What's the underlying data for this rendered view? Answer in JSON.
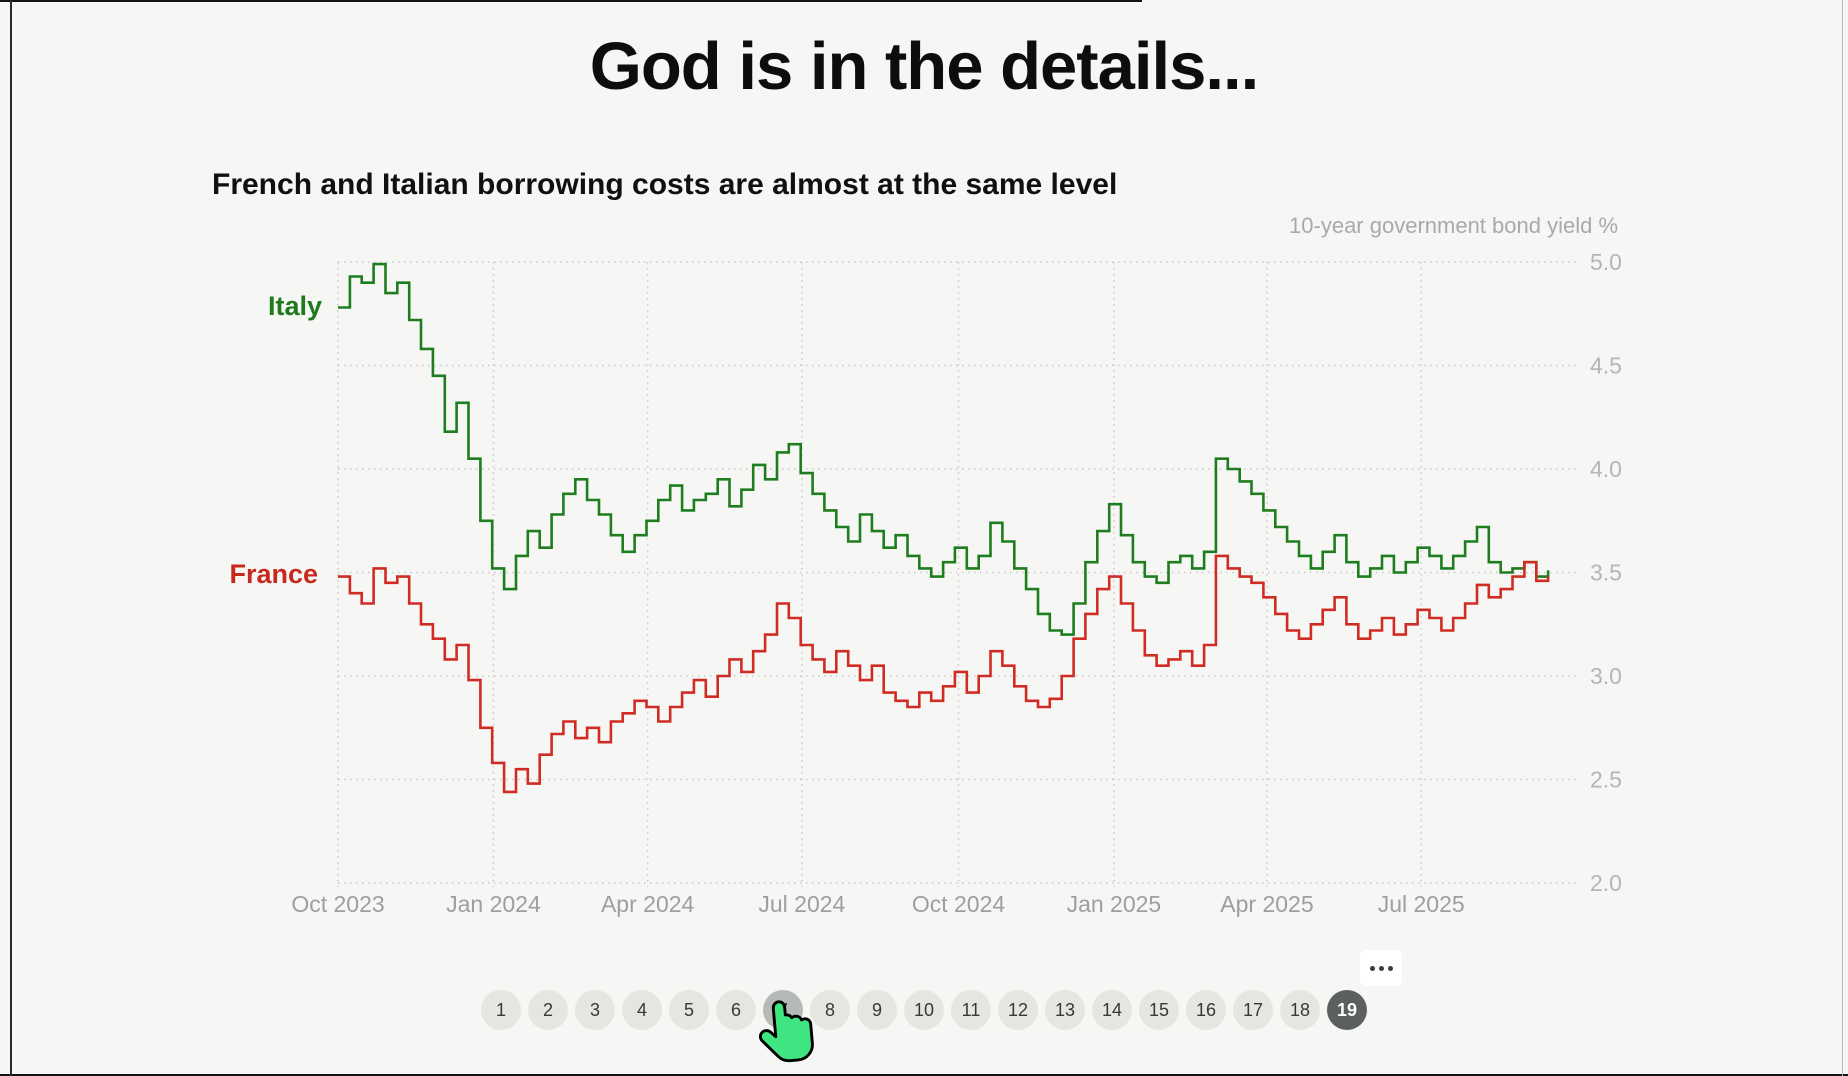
{
  "page": {
    "title": "God is in the details..."
  },
  "chart": {
    "heading": "French and Italian borrowing costs are almost at the same level",
    "axis_title": "10-year government bond yield %",
    "italy_label": "Italy",
    "france_label": "France"
  },
  "chart_data": {
    "type": "line",
    "title": "French and Italian borrowing costs are almost at the same level",
    "ylabel": "10-year government bond yield %",
    "ylim": [
      2.0,
      5.0
    ],
    "y_ticks": [
      "5.0",
      "4.5",
      "4.0",
      "3.5",
      "3.0",
      "2.5",
      "2.0"
    ],
    "grid": "dotted",
    "legend_position": "inline-left-labels",
    "x_unit": "weeks since 1 Oct 2023",
    "x_range_weeks": [
      0,
      103
    ],
    "x_ticks": [
      {
        "label": "Oct 2023",
        "week": 0
      },
      {
        "label": "Jan 2024",
        "week": 13.1
      },
      {
        "label": "Apr 2024",
        "week": 26.1
      },
      {
        "label": "Jul 2024",
        "week": 39.1
      },
      {
        "label": "Oct 2024",
        "week": 52.3
      },
      {
        "label": "Jan 2025",
        "week": 65.4
      },
      {
        "label": "Apr 2025",
        "week": 78.3
      },
      {
        "label": "Jul 2025",
        "week": 91.3
      }
    ],
    "series": [
      {
        "name": "Italy",
        "color": "#1e7d1e",
        "interpolation": "step",
        "weekly_values": [
          4.78,
          4.93,
          4.9,
          4.99,
          4.85,
          4.9,
          4.72,
          4.58,
          4.45,
          4.18,
          4.32,
          4.05,
          3.75,
          3.52,
          3.42,
          3.58,
          3.7,
          3.62,
          3.78,
          3.88,
          3.95,
          3.85,
          3.78,
          3.68,
          3.6,
          3.68,
          3.75,
          3.85,
          3.92,
          3.8,
          3.85,
          3.88,
          3.95,
          3.82,
          3.9,
          4.02,
          3.95,
          4.08,
          4.12,
          3.98,
          3.88,
          3.8,
          3.72,
          3.65,
          3.78,
          3.7,
          3.62,
          3.68,
          3.58,
          3.52,
          3.48,
          3.55,
          3.62,
          3.52,
          3.58,
          3.74,
          3.65,
          3.52,
          3.42,
          3.3,
          3.22,
          3.2,
          3.35,
          3.55,
          3.7,
          3.83,
          3.68,
          3.55,
          3.48,
          3.45,
          3.55,
          3.58,
          3.52,
          3.6,
          4.05,
          4.0,
          3.94,
          3.88,
          3.8,
          3.72,
          3.65,
          3.58,
          3.52,
          3.6,
          3.68,
          3.55,
          3.48,
          3.52,
          3.58,
          3.5,
          3.55,
          3.62,
          3.58,
          3.52,
          3.58,
          3.65,
          3.72,
          3.55,
          3.5,
          3.52,
          3.55,
          3.48,
          3.51
        ]
      },
      {
        "name": "France",
        "color": "#d02c24",
        "interpolation": "step",
        "weekly_values": [
          3.48,
          3.4,
          3.35,
          3.52,
          3.45,
          3.48,
          3.35,
          3.25,
          3.18,
          3.08,
          3.15,
          2.98,
          2.75,
          2.58,
          2.44,
          2.55,
          2.48,
          2.62,
          2.72,
          2.78,
          2.7,
          2.75,
          2.68,
          2.78,
          2.82,
          2.88,
          2.85,
          2.78,
          2.85,
          2.92,
          2.98,
          2.9,
          3.0,
          3.08,
          3.02,
          3.12,
          3.2,
          3.35,
          3.28,
          3.15,
          3.08,
          3.02,
          3.12,
          3.05,
          2.98,
          3.05,
          2.92,
          2.88,
          2.85,
          2.92,
          2.88,
          2.95,
          3.02,
          2.92,
          3.0,
          3.12,
          3.05,
          2.95,
          2.88,
          2.85,
          2.89,
          3.0,
          3.18,
          3.3,
          3.42,
          3.48,
          3.35,
          3.22,
          3.1,
          3.05,
          3.08,
          3.12,
          3.05,
          3.15,
          3.58,
          3.52,
          3.48,
          3.45,
          3.38,
          3.3,
          3.22,
          3.18,
          3.25,
          3.32,
          3.38,
          3.25,
          3.18,
          3.22,
          3.28,
          3.2,
          3.25,
          3.32,
          3.28,
          3.22,
          3.28,
          3.35,
          3.44,
          3.38,
          3.42,
          3.48,
          3.55,
          3.46,
          3.48
        ]
      }
    ]
  },
  "pagination": {
    "pages": [
      "1",
      "2",
      "3",
      "4",
      "5",
      "6",
      "7",
      "8",
      "9",
      "10",
      "11",
      "12",
      "13",
      "14",
      "15",
      "16",
      "17",
      "18",
      "19"
    ],
    "active_page": "19",
    "hovered_page": "7"
  },
  "more_button": {
    "icon": "ellipsis"
  },
  "cursor": {
    "type": "green-hand-pointer",
    "over_page": "7",
    "color": "#3ee581"
  },
  "colors": {
    "background": "#f6f7f4",
    "italy_green": "#1e7d1e",
    "france_red": "#d02c24",
    "grid": "#c9c9c9",
    "y_tick_label": "#b5b5b5",
    "x_tick_label": "#9e9e9e",
    "pagination_idle": "#e4e6e2",
    "pagination_hover": "#b6bab6",
    "pagination_active": "#5b605f"
  }
}
